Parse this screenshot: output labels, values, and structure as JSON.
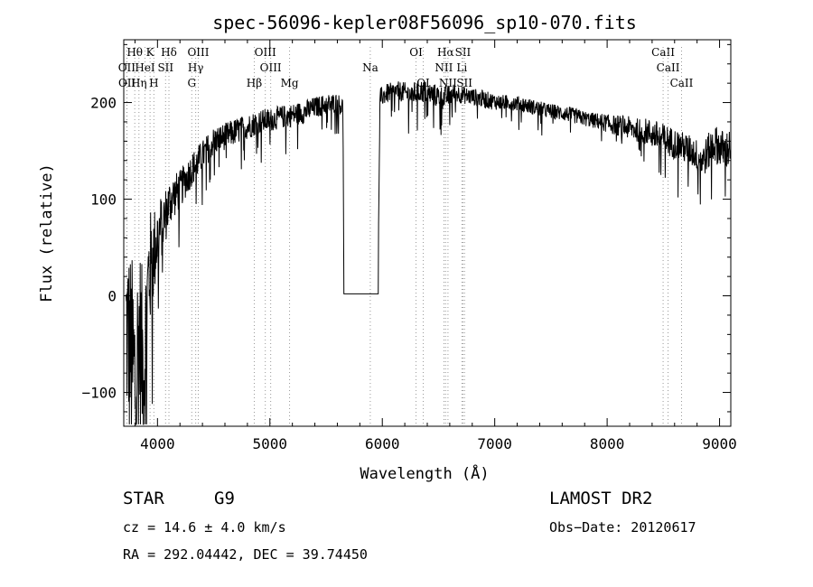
{
  "chart_data": {
    "type": "line",
    "title": "spec-56096-kepler08F56096_sp10-070.fits",
    "xlabel": "Wavelength (Å)",
    "ylabel": "Flux (relative)",
    "xlim": [
      3700,
      9100
    ],
    "ylim": [
      -135,
      265
    ],
    "x_ticks": [
      4000,
      5000,
      6000,
      7000,
      8000,
      9000
    ],
    "x_tick_labels": [
      "4000",
      "5000",
      "6000",
      "7000",
      "8000",
      "9000"
    ],
    "y_ticks": [
      -100,
      0,
      100,
      200
    ],
    "y_tick_labels": [
      "−100",
      "0",
      "100",
      "200"
    ],
    "grid": false,
    "series": [
      {
        "name": "flux",
        "x": [
          3720,
          3760,
          3800,
          3840,
          3880,
          3920,
          3960,
          4000,
          4060,
          4120,
          4200,
          4300,
          4400,
          4500,
          4600,
          4700,
          4800,
          4900,
          5000,
          5100,
          5200,
          5300,
          5400,
          5500,
          5600,
          5650,
          5660,
          5700,
          5800,
          5900,
          5960,
          5980,
          6050,
          6150,
          6250,
          6350,
          6450,
          6550,
          6650,
          6750,
          6850,
          6950,
          7050,
          7150,
          7250,
          7350,
          7450,
          7550,
          7650,
          7750,
          7850,
          7950,
          8050,
          8150,
          8250,
          8350,
          8450,
          8550,
          8650,
          8750,
          8850,
          8950,
          9050,
          9100
        ],
        "y": [
          -30,
          -60,
          -90,
          -40,
          -80,
          20,
          40,
          60,
          80,
          100,
          110,
          130,
          145,
          160,
          165,
          170,
          175,
          180,
          182,
          185,
          187,
          190,
          195,
          198,
          200,
          195,
          2,
          2,
          2,
          2,
          2,
          205,
          210,
          212,
          208,
          212,
          208,
          205,
          210,
          207,
          205,
          202,
          200,
          200,
          198,
          195,
          192,
          190,
          188,
          185,
          182,
          180,
          177,
          175,
          172,
          170,
          165,
          160,
          155,
          150,
          140,
          158,
          150,
          155
        ],
        "noise": [
          100,
          110,
          120,
          100,
          90,
          70,
          50,
          40,
          30,
          25,
          20,
          18,
          16,
          15,
          14,
          14,
          13,
          13,
          12,
          12,
          12,
          12,
          11,
          11,
          10,
          10,
          0,
          0,
          0,
          0,
          0,
          10,
          10,
          10,
          12,
          12,
          12,
          12,
          10,
          9,
          9,
          9,
          8,
          8,
          8,
          8,
          8,
          8,
          8,
          8,
          8,
          9,
          10,
          12,
          12,
          14,
          16,
          16,
          16,
          16,
          18,
          20,
          20,
          20
        ]
      }
    ],
    "line_markers": {
      "row1": [
        {
          "label": "Hθ",
          "x": 3798
        },
        {
          "label": "K",
          "x": 3934
        },
        {
          "label": "Hδ",
          "x": 4102
        },
        {
          "label": "OIII",
          "x": 4363
        },
        {
          "label": "OIII",
          "x": 4959
        },
        {
          "label": "OI",
          "x": 6300
        },
        {
          "label": "Hα",
          "x": 6563
        },
        {
          "label": "SII",
          "x": 6717
        },
        {
          "label": "CaII",
          "x": 8498
        }
      ],
      "row2": [
        {
          "label": "OII",
          "x": 3727
        },
        {
          "label": "HeI",
          "x": 3889
        },
        {
          "label": "SII",
          "x": 4072
        },
        {
          "label": "Hγ",
          "x": 4340
        },
        {
          "label": "OIII",
          "x": 5007
        },
        {
          "label": "Na",
          "x": 5893
        },
        {
          "label": "NII",
          "x": 6548
        },
        {
          "label": "Li",
          "x": 6708
        },
        {
          "label": "CaII",
          "x": 8542
        }
      ],
      "row3": [
        {
          "label": "OII",
          "x": 3729
        },
        {
          "label": "Hη",
          "x": 3835
        },
        {
          "label": "H",
          "x": 3968
        },
        {
          "label": "G",
          "x": 4305
        },
        {
          "label": "Hβ",
          "x": 4861
        },
        {
          "label": "Mg",
          "x": 5175
        },
        {
          "label": "OI",
          "x": 6364
        },
        {
          "label": "NII",
          "x": 6584
        },
        {
          "label": "SII",
          "x": 6731
        },
        {
          "label": "CaII",
          "x": 8662
        }
      ]
    }
  },
  "info": {
    "class": "STAR",
    "subclass": "G9",
    "survey": "LAMOST DR2",
    "cz": "cz = 14.6 ± 4.0 km/s",
    "obs_date": "Obs−Date: 20120617",
    "coords": "RA = 292.04442, DEC =  39.74450"
  }
}
